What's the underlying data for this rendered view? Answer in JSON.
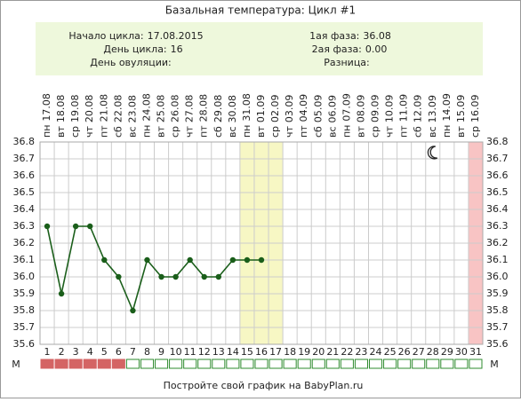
{
  "chart_data": {
    "type": "line",
    "title": "Базальная температура: Цикл #1",
    "info": {
      "left": [
        {
          "label": "Начало цикла:",
          "value": "17.08.2015"
        },
        {
          "label": "День цикла:",
          "value": "16"
        },
        {
          "label": "День овуляции:",
          "value": ""
        }
      ],
      "right": [
        {
          "label": "1ая фаза:",
          "value": "36.08"
        },
        {
          "label": "2ая фаза:",
          "value": "0.00"
        },
        {
          "label": "Разница:",
          "value": ""
        }
      ]
    },
    "categories": [
      "1",
      "2",
      "3",
      "4",
      "5",
      "6",
      "7",
      "8",
      "9",
      "10",
      "11",
      "12",
      "13",
      "14",
      "15",
      "16",
      "17",
      "18",
      "19",
      "20",
      "21",
      "22",
      "23",
      "24",
      "25",
      "26",
      "27",
      "28",
      "29",
      "30",
      "31"
    ],
    "weekdays": [
      "пн",
      "вт",
      "ср",
      "чт",
      "пт",
      "сб",
      "вс",
      "пн",
      "вт",
      "ср",
      "чт",
      "пт",
      "сб",
      "вс",
      "пн",
      "вт",
      "ср",
      "чт",
      "пт",
      "сб",
      "вс",
      "пн",
      "вт",
      "ср",
      "чт",
      "пт",
      "сб",
      "вс",
      "пн",
      "вт",
      "ср"
    ],
    "dates": [
      "17.08",
      "18.08",
      "19.08",
      "20.08",
      "21.08",
      "22.08",
      "23.08",
      "24.08",
      "25.08",
      "26.08",
      "27.08",
      "28.08",
      "29.08",
      "30.08",
      "31.08",
      "01.09",
      "02.09",
      "03.09",
      "04.09",
      "05.09",
      "06.09",
      "07.09",
      "08.09",
      "09.09",
      "10.09",
      "11.09",
      "12.09",
      "13.09",
      "14.09",
      "15.09",
      "16.09"
    ],
    "values": [
      36.3,
      35.9,
      36.3,
      36.3,
      36.1,
      36.0,
      35.8,
      36.1,
      36.0,
      36.0,
      36.1,
      36.0,
      36.0,
      36.1,
      36.1,
      36.1,
      null,
      null,
      null,
      null,
      null,
      null,
      null,
      null,
      null,
      null,
      null,
      null,
      null,
      null,
      null
    ],
    "color": "#1a5e1a",
    "ylim": [
      35.6,
      36.8
    ],
    "yticks": [
      35.6,
      35.7,
      35.8,
      35.9,
      {
        "value": 36.0,
        "label": "36.0"
      },
      36.1,
      36.2,
      36.3,
      36.4,
      36.5,
      36.6,
      36.7,
      36.8
    ],
    "grid": true,
    "row_label": "М",
    "menstruation_days": [
      1,
      2,
      3,
      4,
      5,
      6
    ],
    "highlight_days": [
      15,
      16,
      17
    ],
    "pink_days": [
      31
    ],
    "moon_day": 28,
    "footer": "Постройте свой график на BabyPlan.ru"
  }
}
